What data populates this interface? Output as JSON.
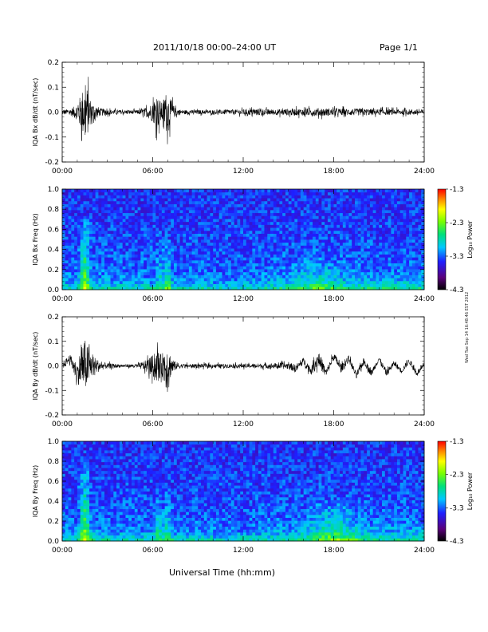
{
  "header": {
    "title": "2011/10/18   00:00–24:00 UT",
    "page": "Page 1/1"
  },
  "footer": {
    "xlabel": "Universal Time (hh:mm)",
    "stamp": "Wed Tue Sep 14 16:48:46 EST 2012"
  },
  "colors": {
    "trace": "#000000",
    "colormap": [
      "#000000",
      "#5a007a",
      "#1f1fff",
      "#00c8ff",
      "#00e07a",
      "#7cff00",
      "#ffff00",
      "#ff8800",
      "#ff0000"
    ]
  },
  "chart_data": [
    {
      "type": "line",
      "ylabel": "IQA Bx dB/dt (nT/sec)",
      "xlim": [
        "00:00",
        "24:00"
      ],
      "ylim": [
        -0.2,
        0.2
      ],
      "xticks": [
        "00:00",
        "06:00",
        "12:00",
        "18:00",
        "24:00"
      ],
      "yticks": [
        "-0.2",
        "-0.1",
        "0.0",
        "0.1",
        "0.2"
      ],
      "series": [
        {
          "x": [
            0,
            0.5,
            1.0,
            1.3,
            1.5,
            1.6,
            1.8,
            2.0,
            2.5,
            3.0,
            4.0,
            5.0,
            5.5,
            6.0,
            6.3,
            6.6,
            6.9,
            7.2,
            7.5,
            8.0,
            9.0,
            10.0,
            12.0,
            13.0,
            14.0,
            15.0,
            16.0,
            17.0,
            18.0,
            20.0,
            22.0,
            24.0
          ],
          "amp": [
            0.02,
            0.02,
            0.06,
            0.15,
            0.2,
            0.2,
            0.12,
            0.07,
            0.03,
            0.02,
            0.015,
            0.015,
            0.03,
            0.07,
            0.12,
            0.07,
            0.15,
            0.09,
            0.03,
            0.015,
            0.015,
            0.015,
            0.02,
            0.025,
            0.02,
            0.025,
            0.025,
            0.03,
            0.025,
            0.025,
            0.02,
            0.02
          ],
          "offset": [
            0,
            0,
            0,
            0,
            0,
            0,
            0,
            0,
            0,
            0,
            0,
            0,
            0,
            0,
            0,
            0,
            0,
            0,
            0,
            0,
            0,
            0,
            0,
            0,
            0,
            0,
            0,
            0,
            0,
            0,
            0,
            0
          ]
        }
      ]
    },
    {
      "type": "heatmap",
      "ylabel": "IQA Bx Freq (Hz)",
      "xlim": [
        "00:00",
        "24:00"
      ],
      "ylim": [
        0.0,
        1.0
      ],
      "xticks": [
        "00:00",
        "06:00",
        "12:00",
        "18:00",
        "24:00"
      ],
      "yticks": [
        "0.0",
        "0.2",
        "0.4",
        "0.6",
        "0.8",
        "1.0"
      ],
      "colorbar": {
        "label": "Log₁₀ Power",
        "ticks": [
          "-1.3",
          "-2.3",
          "-3.3",
          "-4.3"
        ],
        "range": [
          -4.3,
          -1.3
        ]
      },
      "events": [
        {
          "t": 1.5,
          "width": 0.3,
          "fmax": 0.7,
          "strength": 1.0
        },
        {
          "t": 6.5,
          "width": 0.25,
          "fmax": 0.4,
          "strength": 0.5
        },
        {
          "t": 7.0,
          "width": 0.2,
          "fmax": 0.5,
          "strength": 0.6
        },
        {
          "t": 17.0,
          "width": 1.5,
          "fmax": 0.35,
          "strength": 0.35
        }
      ]
    },
    {
      "type": "line",
      "ylabel": "IQA By dB/dt (nT/sec)",
      "xlim": [
        "00:00",
        "24:00"
      ],
      "ylim": [
        -0.2,
        0.2
      ],
      "xticks": [
        "00:00",
        "06:00",
        "12:00",
        "18:00",
        "24:00"
      ],
      "yticks": [
        "-0.2",
        "-0.1",
        "0.0",
        "0.1",
        "0.2"
      ],
      "series": [
        {
          "x": [
            0,
            0.5,
            1.0,
            1.3,
            1.5,
            1.7,
            1.9,
            2.2,
            2.6,
            3.0,
            4.0,
            5.0,
            5.5,
            6.0,
            6.3,
            6.6,
            6.9,
            7.2,
            7.5,
            8.0,
            10.0,
            12.0,
            14.0,
            15.0,
            15.5,
            16.0,
            16.5,
            17.0,
            17.5,
            18.0,
            18.5,
            19.0,
            19.5,
            20.0,
            20.5,
            21.0,
            21.5,
            22.0,
            22.5,
            23.0,
            23.5,
            24.0
          ],
          "amp": [
            0.02,
            0.03,
            0.08,
            0.15,
            0.2,
            0.15,
            0.1,
            0.06,
            0.03,
            0.02,
            0.01,
            0.015,
            0.04,
            0.08,
            0.12,
            0.08,
            0.18,
            0.08,
            0.03,
            0.015,
            0.015,
            0.015,
            0.02,
            0.025,
            0.03,
            0.025,
            0.03,
            0.06,
            0.03,
            0.03,
            0.03,
            0.025,
            0.025,
            0.025,
            0.025,
            0.02,
            0.025,
            0.02,
            0.02,
            0.02,
            0.02,
            0.02
          ],
          "offset": [
            0.0,
            0.03,
            -0.03,
            0.0,
            0.0,
            0.0,
            0.0,
            0.0,
            0.0,
            0.0,
            0.0,
            0.0,
            0.0,
            0.0,
            0.0,
            0.0,
            0.0,
            0.0,
            0.0,
            0.0,
            0.0,
            0.0,
            0.0,
            0.0,
            -0.01,
            0.02,
            -0.02,
            0.03,
            -0.03,
            0.04,
            -0.01,
            0.03,
            -0.04,
            0.02,
            -0.03,
            0.03,
            -0.03,
            0.01,
            -0.02,
            0.02,
            -0.03,
            0.0
          ]
        }
      ]
    },
    {
      "type": "heatmap",
      "ylabel": "IQA By Freq (Hz)",
      "xlim": [
        "00:00",
        "24:00"
      ],
      "ylim": [
        0.0,
        1.0
      ],
      "xticks": [
        "00:00",
        "06:00",
        "12:00",
        "18:00",
        "24:00"
      ],
      "yticks": [
        "0.0",
        "0.2",
        "0.4",
        "0.6",
        "0.8",
        "1.0"
      ],
      "colorbar": {
        "label": "Log₁₀ Power",
        "ticks": [
          "-1.3",
          "-2.3",
          "-3.3",
          "-4.3"
        ],
        "range": [
          -4.3,
          -1.3
        ]
      },
      "events": [
        {
          "t": 1.5,
          "width": 0.3,
          "fmax": 0.8,
          "strength": 1.0
        },
        {
          "t": 6.4,
          "width": 0.25,
          "fmax": 0.5,
          "strength": 0.55
        },
        {
          "t": 7.0,
          "width": 0.2,
          "fmax": 0.5,
          "strength": 0.6
        },
        {
          "t": 18.0,
          "width": 1.5,
          "fmax": 0.4,
          "strength": 0.55
        }
      ]
    }
  ]
}
